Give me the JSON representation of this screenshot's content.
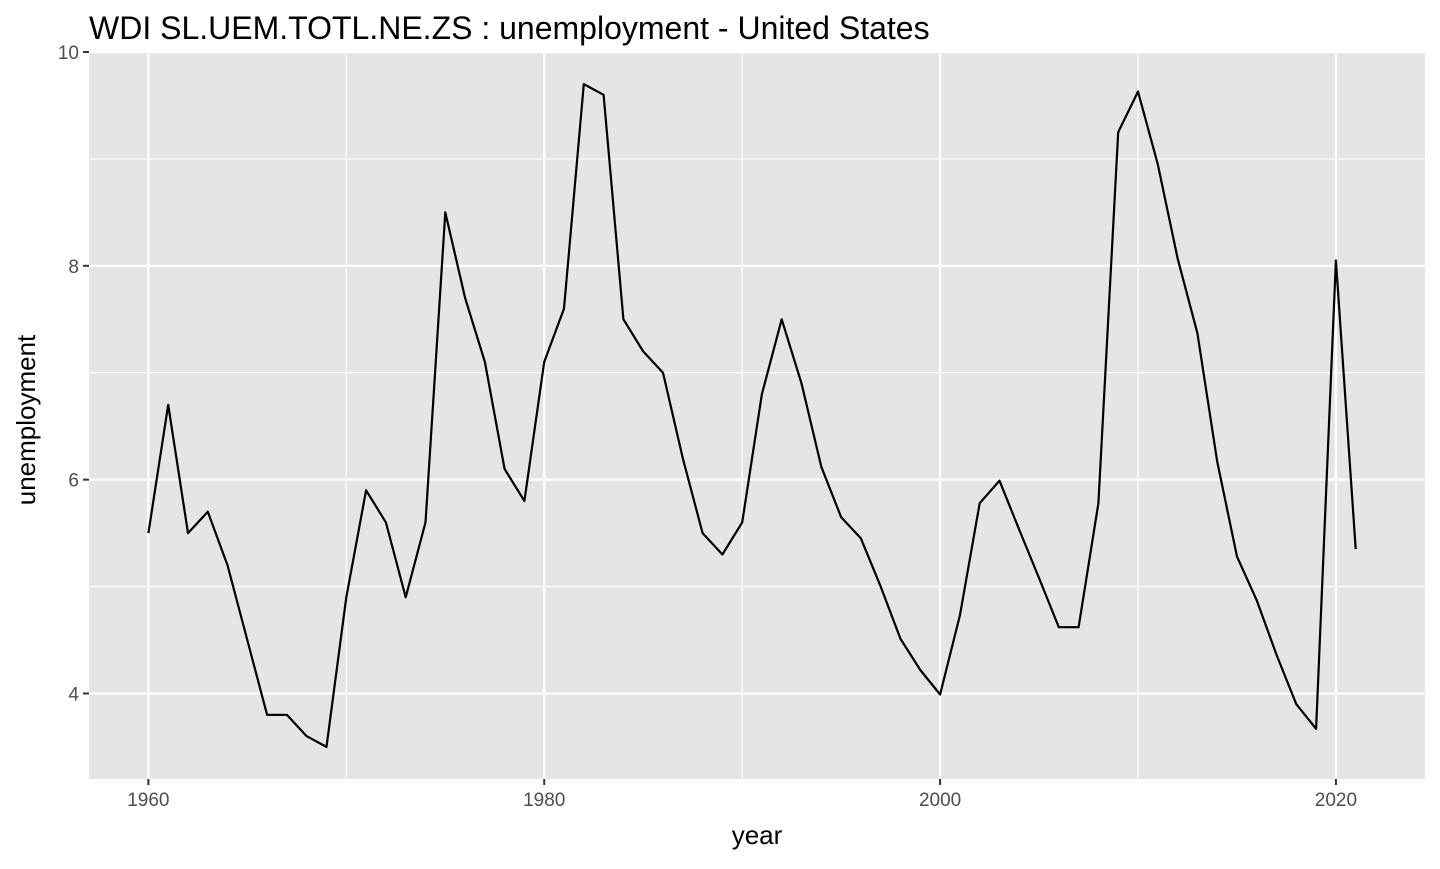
{
  "chart_data": {
    "type": "line",
    "title": "WDI  SL.UEM.TOTL.NE.ZS :  unemployment  -  United States",
    "xlabel": "year",
    "ylabel": "unemployment",
    "xlim": [
      1957,
      2024.5
    ],
    "ylim": [
      3.2,
      10
    ],
    "x_ticks": [
      1960,
      1980,
      2000,
      2020
    ],
    "x_minor_ticks": [
      1970,
      1990,
      2010
    ],
    "y_ticks": [
      4,
      6,
      8,
      10
    ],
    "y_minor_ticks": [
      5,
      7,
      9
    ],
    "tick_labels_x": [
      "1960",
      "1980",
      "2000",
      "2020"
    ],
    "tick_labels_y": [
      "4",
      "6",
      "8",
      "10"
    ],
    "grid": true,
    "panel_background": "#e5e5e5",
    "series": [
      {
        "line_color": "#000000",
        "x": [
          1960,
          1961,
          1962,
          1963,
          1964,
          1965,
          1966,
          1967,
          1968,
          1969,
          1970,
          1971,
          1972,
          1973,
          1974,
          1975,
          1976,
          1977,
          1978,
          1979,
          1980,
          1981,
          1982,
          1983,
          1984,
          1985,
          1986,
          1987,
          1988,
          1989,
          1990,
          1991,
          1992,
          1993,
          1994,
          1995,
          1996,
          1997,
          1998,
          1999,
          2000,
          2001,
          2002,
          2003,
          2004,
          2005,
          2006,
          2007,
          2008,
          2009,
          2010,
          2011,
          2012,
          2013,
          2014,
          2015,
          2016,
          2017,
          2018,
          2019,
          2020,
          2021
        ],
        "y": [
          5.5,
          6.7,
          5.5,
          5.7,
          5.2,
          4.5,
          3.8,
          3.8,
          3.6,
          3.5,
          4.9,
          5.9,
          5.6,
          4.9,
          5.6,
          8.5,
          7.7,
          7.1,
          6.1,
          5.8,
          7.1,
          7.6,
          9.7,
          9.6,
          7.5,
          7.2,
          7.0,
          6.2,
          5.5,
          5.3,
          5.6,
          6.8,
          7.5,
          6.9,
          6.12,
          5.65,
          5.45,
          5.0,
          4.51,
          4.22,
          3.99,
          4.73,
          5.78,
          5.99,
          5.53,
          5.08,
          4.62,
          4.62,
          5.78,
          9.25,
          9.63,
          8.95,
          8.07,
          7.37,
          6.17,
          5.28,
          4.87,
          4.36,
          3.9,
          3.67,
          8.05,
          5.35
        ]
      }
    ]
  }
}
